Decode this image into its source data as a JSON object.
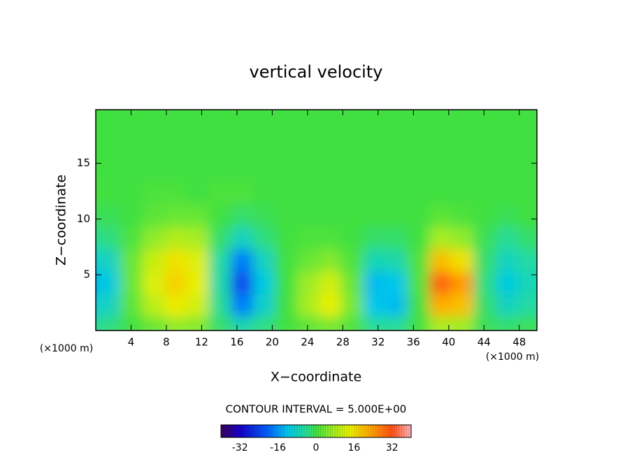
{
  "chart_data": {
    "type": "heatmap",
    "title": "vertical velocity",
    "x_label": "X−coordinate",
    "y_label": "Z−coordinate",
    "x_unit": "(×1000 m)",
    "x_unit_right": "(×1000 m)",
    "contour_note": "CONTOUR INTERVAL = 5.000E+00",
    "x": [
      0,
      2.5,
      5,
      7.5,
      10,
      12.5,
      15,
      17.5,
      20,
      22.5,
      25,
      27.5,
      30,
      32.5,
      35,
      37.5,
      40,
      42.5,
      45,
      47.5,
      50
    ],
    "y": [
      1,
      3,
      5,
      7,
      9,
      11,
      13,
      15,
      17,
      19
    ],
    "z": [
      [
        -4,
        -3,
        0,
        3,
        6,
        5,
        -2,
        -6,
        -3,
        0,
        2,
        4,
        1,
        -4,
        -4,
        0,
        8,
        7,
        -1,
        -2,
        -1
      ],
      [
        -10,
        -8,
        2,
        10,
        15,
        12,
        -4,
        -18,
        -9,
        0,
        8,
        14,
        4,
        -12,
        -13,
        0,
        22,
        20,
        -2,
        -8,
        -5
      ],
      [
        -14,
        -11,
        3,
        13,
        18,
        14,
        -6,
        -24,
        -11,
        0,
        7,
        12,
        3,
        -13,
        -12,
        1,
        30,
        24,
        -3,
        -11,
        -7
      ],
      [
        -10,
        -8,
        3,
        11,
        16,
        13,
        -5,
        -18,
        -8,
        0,
        3,
        5,
        1,
        -7,
        -6,
        1,
        20,
        16,
        -2,
        -8,
        -5
      ],
      [
        -4,
        -3,
        1,
        6,
        9,
        8,
        -2,
        -8,
        -3,
        0,
        1,
        1,
        0,
        -2,
        -2,
        0,
        8,
        6,
        -1,
        -4,
        -2
      ],
      [
        -1,
        -1,
        0,
        2,
        3,
        3,
        0,
        -2,
        -1,
        0,
        0,
        0,
        0,
        0,
        0,
        0,
        2,
        1,
        0,
        -1,
        0
      ],
      [
        1,
        0,
        0,
        1,
        1,
        0,
        1,
        1,
        0,
        0,
        0,
        0,
        0,
        0,
        0,
        0,
        0,
        0,
        0,
        0,
        0
      ],
      [
        0,
        0,
        0,
        0,
        0,
        0,
        0,
        0,
        0,
        0,
        0,
        0,
        0,
        0,
        0,
        0,
        0,
        0,
        0,
        0,
        0
      ],
      [
        0,
        0,
        0,
        0,
        0,
        0,
        0,
        0,
        0,
        0,
        0,
        0,
        0,
        0,
        0,
        0,
        0,
        0,
        0,
        0,
        0
      ],
      [
        0,
        0,
        0,
        0,
        0,
        0,
        0,
        0,
        0,
        0,
        0,
        0,
        0,
        0,
        0,
        0,
        0,
        0,
        0,
        0,
        0
      ]
    ],
    "xlim": [
      0,
      50
    ],
    "ylim": [
      0,
      19.8
    ],
    "xticks": [
      4,
      8,
      12,
      16,
      20,
      24,
      28,
      32,
      36,
      40,
      44,
      48
    ],
    "yticks": [
      5,
      10,
      15
    ],
    "clim": [
      -40,
      40
    ],
    "cticks": [
      -32,
      -16,
      0,
      16,
      32
    ]
  }
}
